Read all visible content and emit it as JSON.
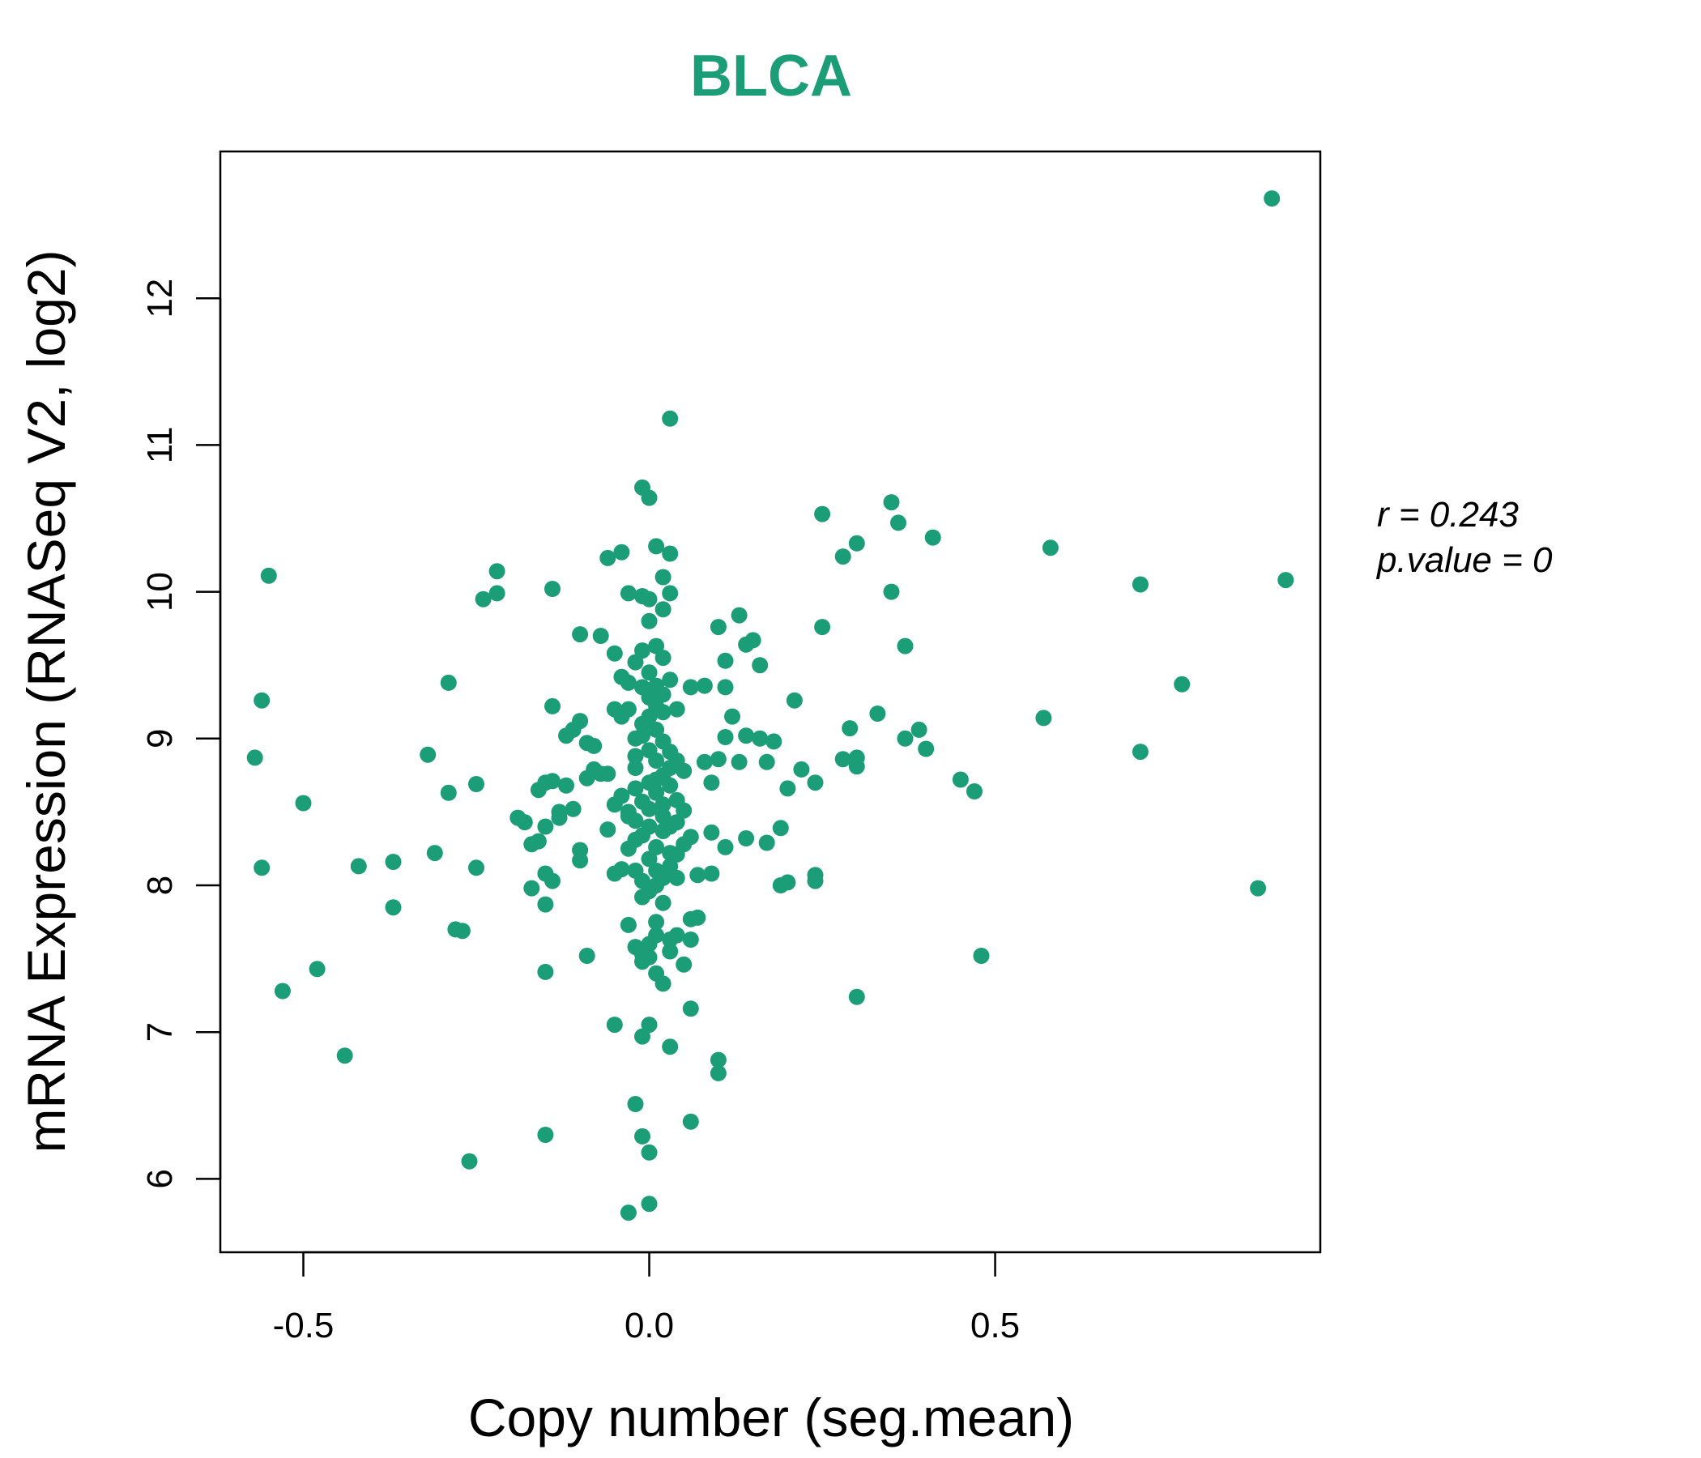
{
  "chart_data": {
    "type": "scatter",
    "title": "BLCA",
    "title_color": "#1b9e77",
    "point_color": "#1b9e77",
    "xlabel": "Copy number (seg.mean)",
    "ylabel": "mRNA Expression (RNASeq V2, log2)",
    "xlim": [
      -0.62,
      0.97
    ],
    "ylim": [
      5.5,
      13.0
    ],
    "xticks": [
      -0.5,
      0.0,
      0.5
    ],
    "xtick_labels": [
      "-0.5",
      "0.0",
      "0.5"
    ],
    "yticks": [
      6,
      7,
      8,
      9,
      10,
      11,
      12
    ],
    "ytick_labels": [
      "6",
      "7",
      "8",
      "9",
      "10",
      "11",
      "12"
    ],
    "annotation": {
      "r_label": "r = 0.243",
      "p_label": "p.value = 0"
    },
    "points": [
      [
        0.9,
        12.68
      ],
      [
        0.03,
        11.18
      ],
      [
        -0.01,
        10.71
      ],
      [
        0.0,
        10.64
      ],
      [
        0.25,
        10.53
      ],
      [
        0.35,
        10.61
      ],
      [
        0.36,
        10.47
      ],
      [
        0.41,
        10.37
      ],
      [
        0.3,
        10.33
      ],
      [
        0.28,
        10.24
      ],
      [
        0.58,
        10.3
      ],
      [
        0.92,
        10.08
      ],
      [
        0.71,
        10.05
      ],
      [
        0.35,
        10.0
      ],
      [
        -0.55,
        10.11
      ],
      [
        -0.22,
        10.14
      ],
      [
        -0.24,
        9.95
      ],
      [
        -0.22,
        9.99
      ],
      [
        -0.14,
        10.02
      ],
      [
        -0.06,
        10.23
      ],
      [
        -0.04,
        10.27
      ],
      [
        0.01,
        10.31
      ],
      [
        0.03,
        10.26
      ],
      [
        0.02,
        10.1
      ],
      [
        0.03,
        9.99
      ],
      [
        0.02,
        9.88
      ],
      [
        -0.03,
        9.99
      ],
      [
        -0.01,
        9.97
      ],
      [
        0.0,
        9.95
      ],
      [
        0.1,
        9.76
      ],
      [
        0.13,
        9.84
      ],
      [
        0.14,
        9.64
      ],
      [
        0.15,
        9.67
      ],
      [
        0.11,
        9.53
      ],
      [
        0.16,
        9.5
      ],
      [
        0.25,
        9.76
      ],
      [
        0.37,
        9.63
      ],
      [
        -0.1,
        9.71
      ],
      [
        -0.07,
        9.7
      ],
      [
        -0.05,
        9.58
      ],
      [
        -0.29,
        9.38
      ],
      [
        -0.56,
        9.26
      ],
      [
        -0.57,
        8.87
      ],
      [
        -0.5,
        8.56
      ],
      [
        -0.56,
        8.12
      ],
      [
        -0.32,
        8.89
      ],
      [
        -0.29,
        8.63
      ],
      [
        -0.25,
        8.69
      ],
      [
        -0.31,
        8.22
      ],
      [
        -0.37,
        8.16
      ],
      [
        -0.42,
        8.13
      ],
      [
        -0.37,
        7.85
      ],
      [
        -0.25,
        8.12
      ],
      [
        -0.28,
        7.7
      ],
      [
        -0.27,
        7.69
      ],
      [
        -0.48,
        7.43
      ],
      [
        -0.53,
        7.28
      ],
      [
        -0.44,
        6.84
      ],
      [
        -0.26,
        6.12
      ],
      [
        -0.15,
        6.3
      ],
      [
        -0.03,
        5.77
      ],
      [
        0.0,
        5.83
      ],
      [
        0.0,
        6.18
      ],
      [
        -0.01,
        6.29
      ],
      [
        -0.02,
        6.51
      ],
      [
        0.06,
        6.39
      ],
      [
        0.1,
        6.72
      ],
      [
        0.1,
        6.81
      ],
      [
        0.03,
        6.9
      ],
      [
        -0.01,
        6.97
      ],
      [
        -0.05,
        7.05
      ],
      [
        0.0,
        7.05
      ],
      [
        0.06,
        7.16
      ],
      [
        0.3,
        7.24
      ],
      [
        0.48,
        7.52
      ],
      [
        0.88,
        7.98
      ],
      [
        0.71,
        8.91
      ],
      [
        0.77,
        9.37
      ],
      [
        0.57,
        9.14
      ],
      [
        0.47,
        8.64
      ],
      [
        0.45,
        8.72
      ],
      [
        0.4,
        8.93
      ],
      [
        0.39,
        9.06
      ],
      [
        0.37,
        9.0
      ],
      [
        0.33,
        9.17
      ],
      [
        0.29,
        9.07
      ],
      [
        0.28,
        8.86
      ],
      [
        0.3,
        8.81
      ],
      [
        0.3,
        8.87
      ],
      [
        0.24,
        8.7
      ],
      [
        0.22,
        8.79
      ],
      [
        0.2,
        8.66
      ],
      [
        0.21,
        9.26
      ],
      [
        0.18,
        8.98
      ],
      [
        0.17,
        8.84
      ],
      [
        0.16,
        9.0
      ],
      [
        0.14,
        9.02
      ],
      [
        0.13,
        8.84
      ],
      [
        0.12,
        9.15
      ],
      [
        0.11,
        9.01
      ],
      [
        0.1,
        8.86
      ],
      [
        0.09,
        8.7
      ],
      [
        0.08,
        8.84
      ],
      [
        0.08,
        9.36
      ],
      [
        0.06,
        9.35
      ],
      [
        0.11,
        9.35
      ],
      [
        0.09,
        8.36
      ],
      [
        0.11,
        8.26
      ],
      [
        0.14,
        8.32
      ],
      [
        0.17,
        8.29
      ],
      [
        0.19,
        8.39
      ],
      [
        0.2,
        8.02
      ],
      [
        0.19,
        8.0
      ],
      [
        0.24,
        8.07
      ],
      [
        0.24,
        8.03
      ],
      [
        0.09,
        8.08
      ],
      [
        0.07,
        8.07
      ],
      [
        0.06,
        7.77
      ],
      [
        0.07,
        7.78
      ],
      [
        0.06,
        7.63
      ],
      [
        0.05,
        7.46
      ],
      [
        0.04,
        7.66
      ],
      [
        0.03,
        7.55
      ],
      [
        0.02,
        7.33
      ],
      [
        0.01,
        7.4
      ],
      [
        -0.01,
        7.53
      ],
      [
        -0.02,
        7.58
      ],
      [
        -0.03,
        7.73
      ],
      [
        0.01,
        7.75
      ],
      [
        0.0,
        7.51
      ],
      [
        -0.09,
        7.52
      ],
      [
        -0.15,
        7.41
      ],
      [
        -0.15,
        7.87
      ],
      [
        -0.14,
        8.03
      ],
      [
        -0.17,
        7.98
      ],
      [
        -0.15,
        8.08
      ],
      [
        -0.17,
        8.28
      ],
      [
        -0.16,
        8.3
      ],
      [
        -0.18,
        8.43
      ],
      [
        -0.19,
        8.46
      ],
      [
        -0.15,
        8.4
      ],
      [
        -0.13,
        8.46
      ],
      [
        -0.11,
        8.52
      ],
      [
        -0.13,
        8.5
      ],
      [
        -0.16,
        8.65
      ],
      [
        -0.14,
        8.71
      ],
      [
        -0.15,
        8.7
      ],
      [
        -0.12,
        8.68
      ],
      [
        -0.09,
        8.73
      ],
      [
        -0.07,
        8.76
      ],
      [
        -0.1,
        8.24
      ],
      [
        -0.1,
        8.17
      ],
      [
        -0.06,
        8.38
      ],
      [
        -0.05,
        8.55
      ],
      [
        -0.04,
        8.61
      ],
      [
        -0.03,
        8.5
      ],
      [
        -0.05,
        8.08
      ],
      [
        -0.04,
        8.11
      ],
      [
        -0.03,
        8.25
      ],
      [
        -0.02,
        8.31
      ],
      [
        -0.14,
        9.22
      ],
      [
        -0.12,
        9.02
      ],
      [
        -0.1,
        9.12
      ],
      [
        -0.11,
        9.06
      ],
      [
        -0.09,
        8.97
      ],
      [
        -0.08,
        8.95
      ],
      [
        -0.08,
        8.79
      ],
      [
        -0.06,
        8.76
      ],
      [
        -0.05,
        9.2
      ],
      [
        -0.04,
        9.15
      ],
      [
        -0.04,
        9.42
      ],
      [
        -0.03,
        9.38
      ],
      [
        -0.02,
        9.52
      ],
      [
        -0.01,
        9.35
      ],
      [
        0.0,
        9.28
      ],
      [
        0.02,
        9.18
      ],
      [
        0.03,
        9.4
      ],
      [
        0.04,
        9.2
      ],
      [
        0.01,
        9.63
      ],
      [
        0.02,
        9.55
      ],
      [
        0.0,
        9.8
      ],
      [
        -0.01,
        9.6
      ],
      [
        0.0,
        9.15
      ],
      [
        0.01,
        9.06
      ],
      [
        -0.01,
        9.02
      ],
      [
        0.02,
        8.98
      ],
      [
        0.0,
        8.92
      ],
      [
        -0.02,
        8.88
      ],
      [
        0.01,
        8.85
      ],
      [
        0.03,
        8.8
      ],
      [
        0.02,
        8.75
      ],
      [
        0.04,
        8.85
      ],
      [
        0.05,
        8.78
      ],
      [
        0.03,
        8.68
      ],
      [
        0.01,
        8.63
      ],
      [
        -0.01,
        8.57
      ],
      [
        0.0,
        8.52
      ],
      [
        0.02,
        8.47
      ],
      [
        -0.02,
        8.44
      ],
      [
        0.03,
        8.4
      ],
      [
        0.04,
        8.58
      ],
      [
        0.05,
        8.51
      ],
      [
        0.04,
        8.43
      ],
      [
        0.06,
        8.33
      ],
      [
        0.05,
        8.28
      ],
      [
        0.04,
        8.21
      ],
      [
        0.03,
        8.13
      ],
      [
        0.02,
        8.05
      ],
      [
        0.01,
        8.0
      ],
      [
        0.0,
        7.96
      ],
      [
        -0.01,
        8.03
      ],
      [
        -0.02,
        8.1
      ],
      [
        0.0,
        8.18
      ],
      [
        0.01,
        8.26
      ],
      [
        -0.01,
        8.34
      ],
      [
        0.02,
        8.37
      ],
      [
        0.0,
        8.7
      ],
      [
        -0.02,
        8.66
      ],
      [
        0.01,
        8.72
      ],
      [
        -0.01,
        9.1
      ],
      [
        0.01,
        9.22
      ],
      [
        -0.02,
        9.0
      ],
      [
        0.02,
        9.3
      ],
      [
        -0.03,
        9.2
      ],
      [
        0.0,
        9.45
      ],
      [
        0.01,
        9.36
      ],
      [
        0.03,
        8.91
      ],
      [
        -0.02,
        8.8
      ],
      [
        0.0,
        8.4
      ],
      [
        0.02,
        8.55
      ],
      [
        0.03,
        8.22
      ],
      [
        0.01,
        8.1
      ],
      [
        -0.01,
        7.92
      ],
      [
        0.02,
        7.88
      ],
      [
        0.0,
        7.6
      ],
      [
        0.03,
        7.63
      ],
      [
        0.01,
        7.66
      ],
      [
        -0.01,
        7.48
      ],
      [
        0.04,
        8.05
      ],
      [
        -0.03,
        8.47
      ]
    ]
  }
}
